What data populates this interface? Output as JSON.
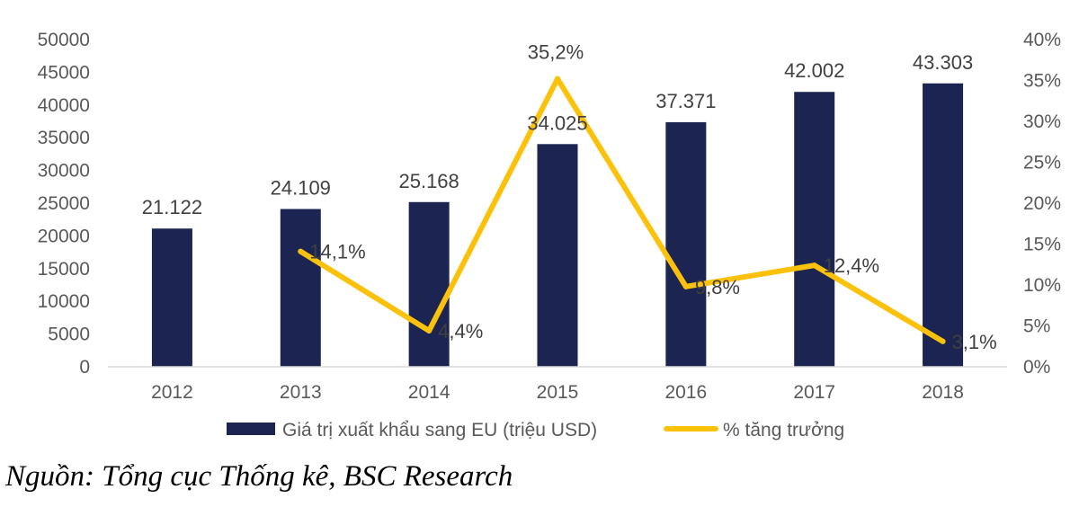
{
  "chart_data": {
    "type": "bar+line",
    "categories": [
      "2012",
      "2013",
      "2014",
      "2015",
      "2016",
      "2017",
      "2018"
    ],
    "series": [
      {
        "name": "Giá trị xuất khẩu sang EU (triệu USD)",
        "type": "bar",
        "axis": "left",
        "values": [
          21122,
          24109,
          25168,
          34025,
          37371,
          42002,
          43303
        ],
        "labels": [
          "21.122",
          "24.109",
          "25.168",
          "34.025",
          "37.371",
          "42.002",
          "43.303"
        ],
        "color": "#1c2551"
      },
      {
        "name": "% tăng trưởng",
        "type": "line",
        "axis": "right",
        "x": [
          "2013",
          "2014",
          "2015",
          "2016",
          "2017",
          "2018"
        ],
        "values": [
          14.1,
          4.4,
          35.2,
          9.8,
          12.4,
          3.1
        ],
        "labels": [
          "14,1%",
          "4,4%",
          "35,2%",
          "9,8%",
          "12,4%",
          "3,1%"
        ],
        "color": "#fcc10b"
      }
    ],
    "y_left": {
      "min": 0,
      "max": 50000,
      "ticks": [
        "0",
        "5000",
        "10000",
        "15000",
        "20000",
        "25000",
        "30000",
        "35000",
        "40000",
        "45000",
        "50000"
      ]
    },
    "y_right": {
      "min": 0,
      "max": 40,
      "ticks": [
        "0%",
        "5%",
        "10%",
        "15%",
        "20%",
        "25%",
        "30%",
        "35%",
        "40%"
      ]
    },
    "grid": false,
    "legend": "bottom",
    "title": ""
  },
  "source_note": "Nguồn: Tổng cục Thống kê, BSC Research"
}
